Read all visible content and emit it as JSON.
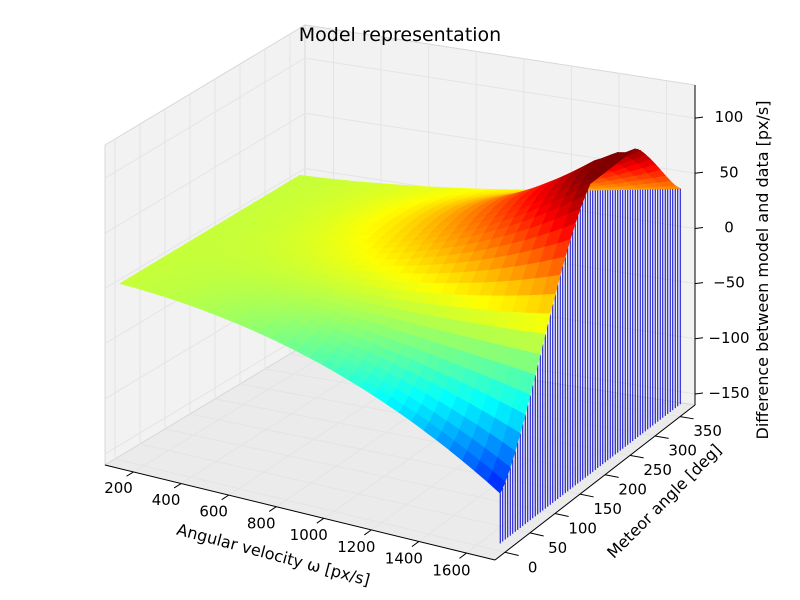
{
  "chart_data": {
    "type": "surface3d",
    "title": "Model representation",
    "xlabel": "Angular velocity ω [px/s]",
    "ylabel": "Meteor angle [deg]",
    "zlabel": "Difference between model and data [px/s]",
    "x_ticks": [
      "200",
      "400",
      "600",
      "800",
      "1000",
      "1200",
      "1400",
      "1600"
    ],
    "y_ticks": [
      "0",
      "50",
      "100",
      "150",
      "200",
      "250",
      "300",
      "350"
    ],
    "z_ticks": [
      "100",
      "50",
      "0",
      "−50",
      "−100",
      "−150"
    ],
    "x_tick_values": [
      200,
      400,
      600,
      800,
      1000,
      1200,
      1400,
      1600
    ],
    "y_tick_values": [
      0,
      50,
      100,
      150,
      200,
      250,
      300,
      350
    ],
    "z_tick_values": [
      100,
      50,
      0,
      -50,
      -100,
      -150
    ],
    "xlim": [
      80,
      1720
    ],
    "ylim": [
      -20,
      380
    ],
    "zlim": [
      -160,
      130
    ],
    "surface": {
      "omega_range": [
        100,
        1700
      ],
      "angle_range": [
        0,
        360
      ],
      "peak_value": 110,
      "min_value": -145,
      "colormap": "jet",
      "edge_color": "#0000cc"
    },
    "grid": true
  }
}
